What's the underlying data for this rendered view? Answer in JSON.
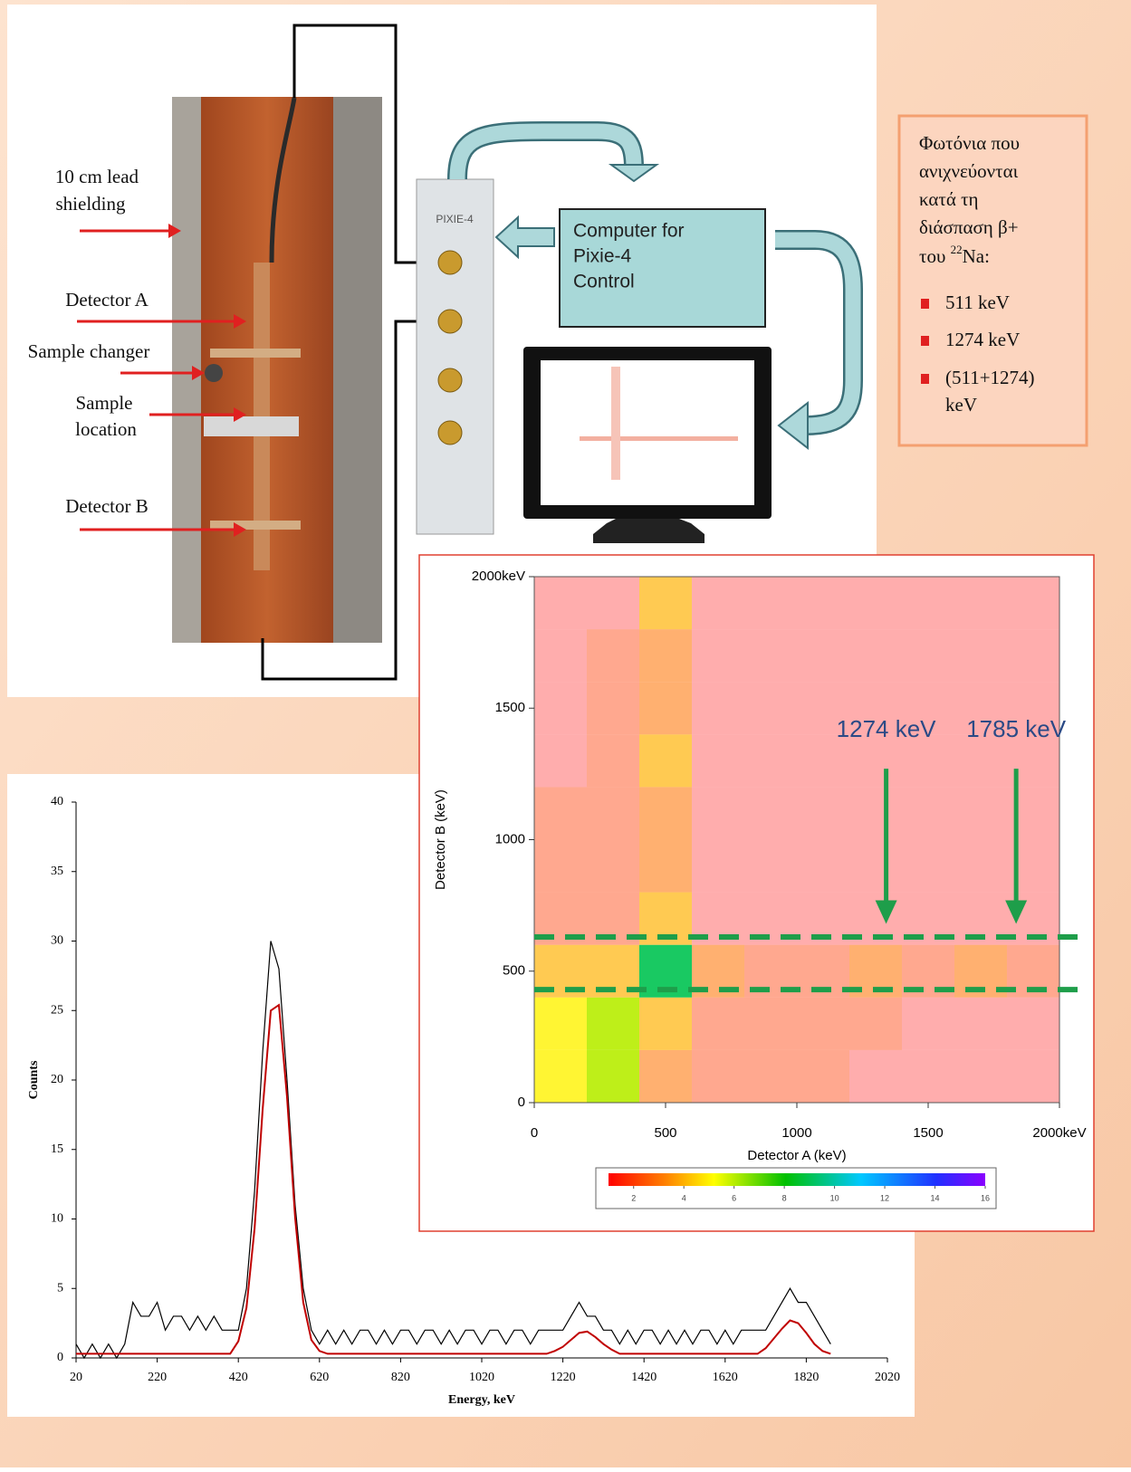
{
  "setup": {
    "labels": [
      [
        "10 cm lead",
        "shielding"
      ],
      [
        "Detector A"
      ],
      [
        "Sample changer"
      ],
      [
        "Sample",
        "location"
      ],
      [
        "Detector B"
      ]
    ],
    "module": "PIXIE-4",
    "computer_box": [
      "Computer for",
      "Pixie-4",
      "Control"
    ]
  },
  "info_box": {
    "intro_lines": [
      "Φωτόνια που",
      "ανιχνεύονται",
      "κατά τη",
      "διάσπαση β+"
    ],
    "last_line": {
      "before": "του",
      "sup": "22",
      "after": "Na:"
    },
    "items": [
      [
        "511 keV"
      ],
      [
        "1274 keV"
      ],
      [
        "(511+1274)",
        "keV"
      ]
    ]
  },
  "chart_data": [
    {
      "type": "line",
      "x_label": "Energy, keV",
      "y_label": "Counts",
      "xlim": [
        20,
        2020
      ],
      "xticks": [
        20,
        220,
        420,
        620,
        820,
        1020,
        1220,
        1420,
        1620,
        1820,
        2020
      ],
      "ylim": [
        0,
        40
      ],
      "yticks": [
        0,
        5,
        10,
        15,
        20,
        25,
        30,
        35,
        40
      ],
      "x": [
        20,
        40,
        60,
        80,
        100,
        120,
        140,
        160,
        180,
        200,
        220,
        240,
        260,
        280,
        300,
        320,
        340,
        360,
        380,
        400,
        420,
        440,
        460,
        480,
        500,
        520,
        540,
        560,
        580,
        600,
        620,
        640,
        660,
        680,
        700,
        720,
        740,
        760,
        780,
        800,
        820,
        840,
        860,
        880,
        900,
        920,
        940,
        960,
        980,
        1000,
        1020,
        1040,
        1060,
        1080,
        1100,
        1120,
        1140,
        1160,
        1180,
        1200,
        1220,
        1240,
        1260,
        1280,
        1300,
        1320,
        1340,
        1360,
        1380,
        1400,
        1420,
        1440,
        1460,
        1480,
        1500,
        1520,
        1540,
        1560,
        1580,
        1600,
        1620,
        1640,
        1660,
        1680,
        1700,
        1720,
        1740,
        1760,
        1780,
        1800,
        1820,
        1840,
        1860,
        1880
      ],
      "series": [
        {
          "color": "#000000",
          "values": [
            1,
            0,
            1,
            0,
            1,
            0,
            1,
            4,
            3,
            3,
            4,
            2,
            3,
            3,
            2,
            3,
            2,
            3,
            2,
            2,
            2,
            5,
            12,
            22,
            30,
            28,
            20,
            11,
            5,
            2,
            1,
            2,
            1,
            2,
            1,
            2,
            2,
            1,
            2,
            1,
            2,
            2,
            1,
            2,
            2,
            1,
            2,
            1,
            2,
            2,
            1,
            2,
            2,
            1,
            2,
            2,
            1,
            2,
            2,
            2,
            2,
            3,
            4,
            3,
            3,
            2,
            2,
            1,
            2,
            1,
            2,
            2,
            1,
            2,
            1,
            2,
            1,
            2,
            2,
            1,
            2,
            1,
            2,
            2,
            2,
            2,
            3,
            4,
            5,
            4,
            4,
            3,
            2,
            1
          ]
        },
        {
          "color": "#c00000",
          "values": [
            0.3,
            0.3,
            0.3,
            0.3,
            0.3,
            0.3,
            0.3,
            0.3,
            0.3,
            0.3,
            0.3,
            0.3,
            0.3,
            0.3,
            0.3,
            0.3,
            0.3,
            0.3,
            0.3,
            0.3,
            1.2,
            3.6,
            9.3,
            17.9,
            25.0,
            25.4,
            18.8,
            10.1,
            4.0,
            1.3,
            0.5,
            0.3,
            0.3,
            0.3,
            0.3,
            0.3,
            0.3,
            0.3,
            0.3,
            0.3,
            0.3,
            0.3,
            0.3,
            0.3,
            0.3,
            0.3,
            0.3,
            0.3,
            0.3,
            0.3,
            0.3,
            0.3,
            0.3,
            0.3,
            0.3,
            0.3,
            0.3,
            0.3,
            0.3,
            0.5,
            0.8,
            1.3,
            1.8,
            1.9,
            1.5,
            1.0,
            0.6,
            0.3,
            0.3,
            0.3,
            0.3,
            0.3,
            0.3,
            0.3,
            0.3,
            0.3,
            0.3,
            0.3,
            0.3,
            0.3,
            0.3,
            0.3,
            0.3,
            0.3,
            0.3,
            0.7,
            1.4,
            2.1,
            2.7,
            2.5,
            1.8,
            1.0,
            0.5,
            0.3
          ]
        }
      ]
    },
    {
      "type": "heatmap",
      "x_label": "Detector A (keV)",
      "y_label": "Detector B (keV)",
      "xlim": [
        0,
        2000
      ],
      "ylim": [
        0,
        2000
      ],
      "xticks": [
        0,
        500,
        1000,
        1500,
        {
          "value": 2000,
          "label": "2000keV"
        }
      ],
      "yticks": [
        0,
        500,
        1000,
        1500,
        {
          "value": 2000,
          "label": "2000keV"
        }
      ],
      "x_bins": [
        0,
        200,
        400,
        600,
        800,
        1000,
        1200,
        1400,
        1600,
        1800,
        2000
      ],
      "y_bins": [
        0,
        200,
        400,
        600,
        800,
        1000,
        1200,
        1400,
        1600,
        1800,
        2000
      ],
      "z": [
        [
          5,
          6,
          3,
          2,
          2,
          2,
          1,
          1,
          1,
          1
        ],
        [
          5,
          6,
          4,
          2,
          2,
          2,
          2,
          1,
          1,
          1
        ],
        [
          4,
          4,
          9,
          3,
          2,
          2,
          3,
          2,
          3,
          2
        ],
        [
          2,
          2,
          4,
          1,
          1,
          1,
          1,
          1,
          1,
          1
        ],
        [
          2,
          2,
          3,
          1,
          1,
          1,
          1,
          1,
          1,
          1
        ],
        [
          2,
          2,
          3,
          1,
          1,
          1,
          1,
          1,
          1,
          1
        ],
        [
          1,
          2,
          4,
          1,
          1,
          1,
          1,
          1,
          1,
          1
        ],
        [
          1,
          2,
          3,
          1,
          1,
          1,
          1,
          1,
          1,
          1
        ],
        [
          1,
          2,
          3,
          1,
          1,
          1,
          1,
          1,
          1,
          1
        ],
        [
          1,
          1,
          4,
          1,
          1,
          1,
          1,
          1,
          1,
          1
        ]
      ],
      "zlim": [
        1,
        16
      ],
      "colorbar_ticks": [
        2,
        4,
        6,
        8,
        10,
        12,
        14,
        16
      ],
      "hlines": [
        430,
        630
      ],
      "hline_color": "#1e9e4a",
      "annotations": [
        {
          "text": "1274 keV",
          "x": 1340,
          "y_from": 1270,
          "y_to": 680
        },
        {
          "text": "1785 keV",
          "x": 1835,
          "y_from": 1270,
          "y_to": 680
        }
      ]
    }
  ]
}
